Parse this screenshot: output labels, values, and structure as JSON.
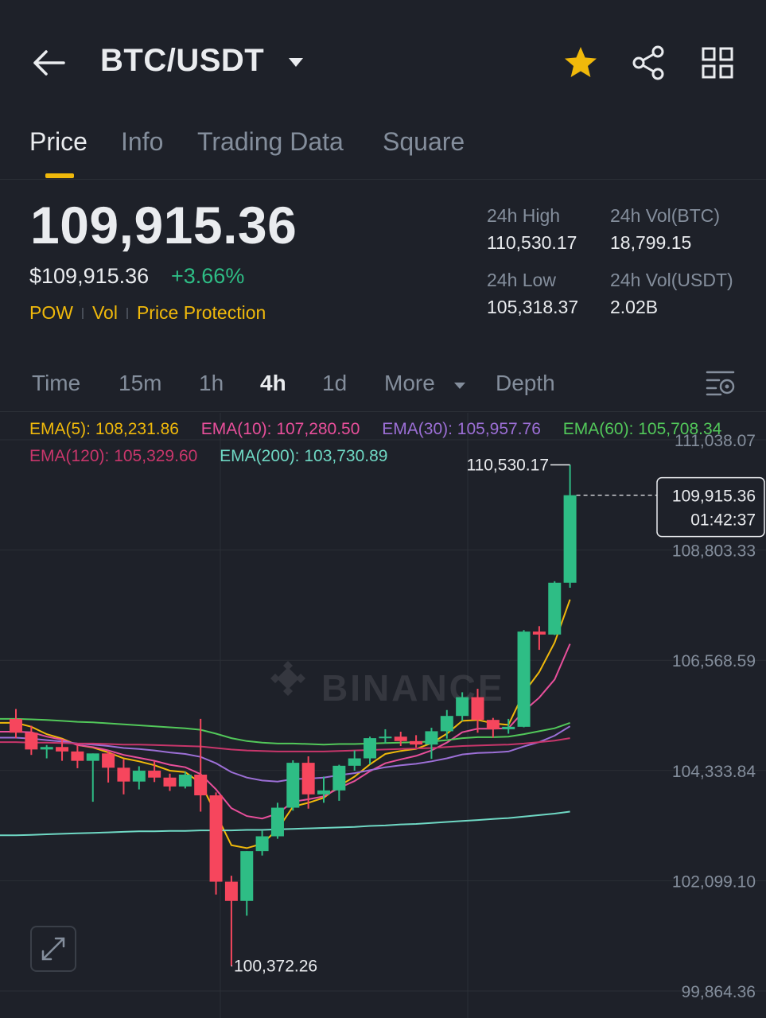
{
  "header": {
    "pair": "BTC/USDT",
    "icons": {
      "back": "arrow-left-icon",
      "caret": "caret-down-icon",
      "favorite": "star-icon",
      "share": "share-icon",
      "more": "grid-icon"
    },
    "favorite_color": "#f0b90b"
  },
  "tabs": [
    {
      "label": "Price",
      "active": true
    },
    {
      "label": "Info"
    },
    {
      "label": "Trading Data"
    },
    {
      "label": "Square"
    }
  ],
  "price": {
    "last": "109,915.36",
    "usd": "$109,915.36",
    "change": "+3.66%",
    "tags": [
      "POW",
      "Vol",
      "Price Protection"
    ]
  },
  "stats": {
    "high_label": "24h High",
    "high": "110,530.17",
    "low_label": "24h Low",
    "low": "105,318.37",
    "vol_btc_label": "24h Vol(BTC)",
    "vol_btc": "18,799.15",
    "vol_usdt_label": "24h Vol(USDT)",
    "vol_usdt": "2.02B"
  },
  "intervals": {
    "items": [
      "Time",
      "15m",
      "1h",
      "4h",
      "1d",
      "More",
      "Depth"
    ],
    "active": "4h"
  },
  "indicators": {
    "ema5": "EMA(5): 108,231.86",
    "ema10": "EMA(10): 107,280.50",
    "ema30": "EMA(30): 105,957.76",
    "ema60": "EMA(60): 105,708.34",
    "ema120": "EMA(120): 105,329.60",
    "ema200": "EMA(200): 103,730.89"
  },
  "colors": {
    "up": "#2ebd85",
    "down": "#f6465d",
    "accent": "#f0b90b",
    "ema5": "#f0b90b",
    "ema10": "#e84f9b",
    "ema30": "#9c6fd6",
    "ema60": "#52c85a",
    "ema120": "#c8366b",
    "ema200": "#6fd8c4"
  },
  "chart_data": {
    "type": "candlestick",
    "axis_ticks": [
      "111,038.07",
      "108,803.33",
      "106,568.59",
      "104,333.84",
      "102,099.10",
      "99,864.36"
    ],
    "ylim": [
      99864.36,
      111038.07
    ],
    "high_marker": "110,530.17",
    "low_marker": "100,372.26",
    "current_price": "109,915.36",
    "countdown": "01:42:37",
    "watermark": "BINANCE",
    "candles": [
      {
        "o": 105380,
        "h": 105580,
        "l": 104990,
        "c": 105100
      },
      {
        "o": 105100,
        "h": 105240,
        "l": 104650,
        "c": 104760
      },
      {
        "o": 104760,
        "h": 104850,
        "l": 104580,
        "c": 104810
      },
      {
        "o": 104810,
        "h": 104960,
        "l": 104530,
        "c": 104720
      },
      {
        "o": 104720,
        "h": 104850,
        "l": 104380,
        "c": 104530
      },
      {
        "o": 104530,
        "h": 104680,
        "l": 103700,
        "c": 104680
      },
      {
        "o": 104680,
        "h": 104720,
        "l": 104090,
        "c": 104390
      },
      {
        "o": 104390,
        "h": 104560,
        "l": 103850,
        "c": 104110
      },
      {
        "o": 104110,
        "h": 104420,
        "l": 103950,
        "c": 104330
      },
      {
        "o": 104330,
        "h": 104520,
        "l": 104100,
        "c": 104190
      },
      {
        "o": 104190,
        "h": 104270,
        "l": 103920,
        "c": 104010
      },
      {
        "o": 104010,
        "h": 104310,
        "l": 103970,
        "c": 104250
      },
      {
        "o": 104250,
        "h": 105380,
        "l": 103500,
        "c": 103830
      },
      {
        "o": 103830,
        "h": 103890,
        "l": 101820,
        "c": 102080
      },
      {
        "o": 102080,
        "h": 102200,
        "l": 100372,
        "c": 101690
      },
      {
        "o": 101690,
        "h": 102700,
        "l": 101390,
        "c": 102700
      },
      {
        "o": 102700,
        "h": 103110,
        "l": 102610,
        "c": 103000
      },
      {
        "o": 103000,
        "h": 103680,
        "l": 102950,
        "c": 103580
      },
      {
        "o": 103580,
        "h": 104540,
        "l": 103520,
        "c": 104490
      },
      {
        "o": 104490,
        "h": 104620,
        "l": 103560,
        "c": 103850
      },
      {
        "o": 103850,
        "h": 104210,
        "l": 103680,
        "c": 103930
      },
      {
        "o": 103930,
        "h": 104450,
        "l": 103720,
        "c": 104430
      },
      {
        "o": 104430,
        "h": 104740,
        "l": 104330,
        "c": 104580
      },
      {
        "o": 104580,
        "h": 105020,
        "l": 104460,
        "c": 104990
      },
      {
        "o": 104990,
        "h": 105170,
        "l": 104880,
        "c": 105020
      },
      {
        "o": 105020,
        "h": 105120,
        "l": 104830,
        "c": 104930
      },
      {
        "o": 104930,
        "h": 105050,
        "l": 104800,
        "c": 104860
      },
      {
        "o": 104860,
        "h": 105200,
        "l": 104570,
        "c": 105130
      },
      {
        "o": 105130,
        "h": 105560,
        "l": 104980,
        "c": 105440
      },
      {
        "o": 105440,
        "h": 105920,
        "l": 105340,
        "c": 105820
      },
      {
        "o": 105820,
        "h": 105990,
        "l": 105100,
        "c": 105360
      },
      {
        "o": 105360,
        "h": 105400,
        "l": 105000,
        "c": 105170
      },
      {
        "o": 105170,
        "h": 105380,
        "l": 105080,
        "c": 105220
      },
      {
        "o": 105220,
        "h": 107180,
        "l": 105210,
        "c": 107150
      },
      {
        "o": 107150,
        "h": 107260,
        "l": 106780,
        "c": 107090
      },
      {
        "o": 107090,
        "h": 108170,
        "l": 107080,
        "c": 108140
      },
      {
        "o": 108140,
        "h": 110530,
        "l": 108040,
        "c": 109915
      }
    ],
    "ema_series": {
      "ema5": [
        105300,
        105220,
        105070,
        104980,
        104850,
        104800,
        104700,
        104580,
        104520,
        104440,
        104330,
        104300,
        104080,
        103450,
        102820,
        102760,
        102850,
        103140,
        103600,
        103680,
        103780,
        104020,
        104210,
        104460,
        104670,
        104730,
        104770,
        104890,
        105080,
        105340,
        105360,
        105290,
        105260,
        105910,
        106330,
        106930,
        107800
      ],
      "ema10": [
        105120,
        105110,
        105020,
        104960,
        104850,
        104810,
        104740,
        104650,
        104590,
        104530,
        104450,
        104400,
        104260,
        103950,
        103570,
        103410,
        103360,
        103460,
        103700,
        103750,
        103810,
        103980,
        104120,
        104320,
        104480,
        104560,
        104630,
        104740,
        104900,
        105110,
        105180,
        105180,
        105190,
        105540,
        105810,
        106180,
        106900
      ],
      "ema30": [
        105000,
        104980,
        104950,
        104920,
        104880,
        104860,
        104830,
        104790,
        104770,
        104740,
        104700,
        104670,
        104610,
        104480,
        104300,
        104190,
        104130,
        104110,
        104160,
        104170,
        104190,
        104240,
        104280,
        104340,
        104400,
        104440,
        104470,
        104520,
        104580,
        104660,
        104690,
        104700,
        104720,
        104820,
        104910,
        105040,
        105230
      ],
      "ema60": [
        105380,
        105370,
        105360,
        105340,
        105320,
        105310,
        105290,
        105270,
        105250,
        105230,
        105210,
        105190,
        105160,
        105080,
        104990,
        104930,
        104900,
        104880,
        104880,
        104870,
        104860,
        104870,
        104870,
        104880,
        104890,
        104900,
        104910,
        104920,
        104950,
        104990,
        105010,
        105010,
        105020,
        105070,
        105130,
        105190,
        105300
      ],
      "ema120": [
        104910,
        104900,
        104900,
        104890,
        104880,
        104880,
        104870,
        104860,
        104860,
        104850,
        104840,
        104830,
        104820,
        104790,
        104760,
        104740,
        104730,
        104720,
        104720,
        104720,
        104720,
        104730,
        104740,
        104750,
        104760,
        104770,
        104780,
        104790,
        104810,
        104830,
        104840,
        104850,
        104860,
        104880,
        104910,
        104940,
        104990
      ],
      "ema200": [
        103020,
        103030,
        103040,
        103050,
        103060,
        103070,
        103080,
        103090,
        103100,
        103100,
        103110,
        103110,
        103120,
        103120,
        103120,
        103130,
        103130,
        103140,
        103150,
        103160,
        103170,
        103180,
        103190,
        103210,
        103220,
        103240,
        103250,
        103270,
        103290,
        103310,
        103330,
        103350,
        103370,
        103400,
        103430,
        103460,
        103500
      ]
    }
  }
}
